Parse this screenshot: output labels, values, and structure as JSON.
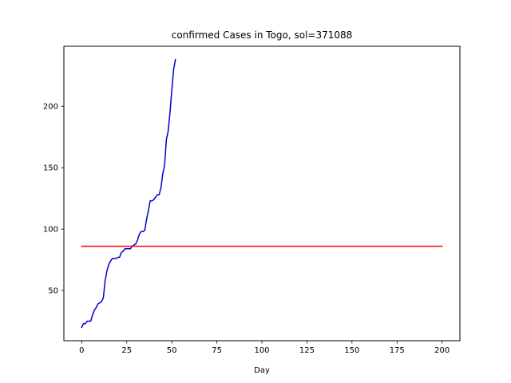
{
  "chart_data": {
    "type": "line",
    "title": "confirmed Cases in Togo, sol=371088",
    "xlabel": "Day",
    "ylabel": "",
    "xlim": [
      -9.9,
      209.9
    ],
    "ylim": [
      9.1,
      248.9
    ],
    "xticks": [
      0,
      25,
      50,
      75,
      100,
      125,
      150,
      175,
      200
    ],
    "yticks": [
      50,
      100,
      150,
      200
    ],
    "grid": false,
    "series": [
      {
        "color": "#0000cd",
        "x": [
          0,
          1,
          2,
          3,
          4,
          5,
          6,
          7,
          8,
          9,
          10,
          11,
          12,
          13,
          14,
          15,
          16,
          17,
          18,
          19,
          20,
          21,
          22,
          23,
          24,
          25,
          26,
          27,
          28,
          29,
          30,
          31,
          32,
          33,
          34,
          35,
          36,
          37,
          38,
          39,
          40,
          41,
          42,
          43,
          44,
          45,
          46,
          47,
          48,
          49,
          50,
          51,
          52
        ],
        "y": [
          20,
          23,
          23,
          25,
          25,
          25,
          30,
          34,
          36,
          39,
          40,
          41,
          44,
          58,
          66,
          71,
          74,
          76,
          76,
          76,
          77,
          77,
          81,
          82,
          84,
          84,
          84,
          84,
          86,
          87,
          88,
          91,
          96,
          98,
          98,
          99,
          108,
          115,
          123,
          123,
          124,
          126,
          128,
          128,
          134,
          145,
          152,
          173,
          180,
          195,
          213,
          230,
          238
        ]
      },
      {
        "color": "#ff0000",
        "x": [
          0,
          200
        ],
        "y": [
          86,
          86
        ]
      }
    ]
  }
}
